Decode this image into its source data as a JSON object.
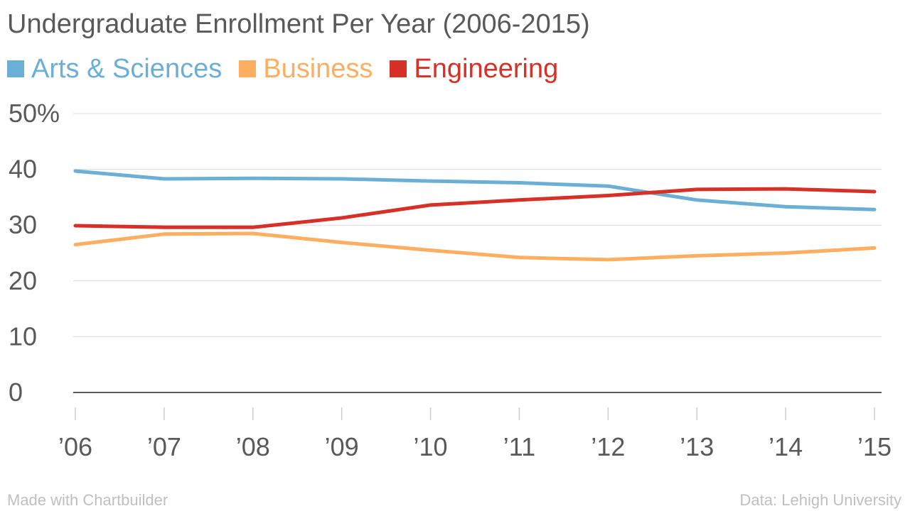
{
  "chart_data": {
    "type": "line",
    "title": "Undergraduate Enrollment Per Year (2006-2015)",
    "x": [
      "’06",
      "’07",
      "’08",
      "’09",
      "’10",
      "’11",
      "’12",
      "’13",
      "’14",
      "’15"
    ],
    "ylim": [
      0,
      50
    ],
    "yticks": [
      "0",
      "10",
      "20",
      "30",
      "40",
      "50%"
    ],
    "ytick_values": [
      0,
      10,
      20,
      30,
      40,
      50
    ],
    "grid": true,
    "legend_position": "top-left",
    "series": [
      {
        "name": "Arts & Sciences",
        "color": "#6baed6",
        "values": [
          39.7,
          38.3,
          38.4,
          38.3,
          37.9,
          37.6,
          37.0,
          34.5,
          33.3,
          32.8
        ]
      },
      {
        "name": "Business",
        "color": "#fdae61",
        "values": [
          26.5,
          28.4,
          28.5,
          26.9,
          25.5,
          24.2,
          23.8,
          24.5,
          25.0,
          25.9
        ]
      },
      {
        "name": "Engineering",
        "color": "#d73027",
        "values": [
          29.9,
          29.6,
          29.6,
          31.3,
          33.6,
          34.5,
          35.3,
          36.4,
          36.5,
          36.0
        ]
      }
    ]
  },
  "footer": {
    "credit": "Made with Chartbuilder",
    "source": "Data: Lehigh University"
  }
}
